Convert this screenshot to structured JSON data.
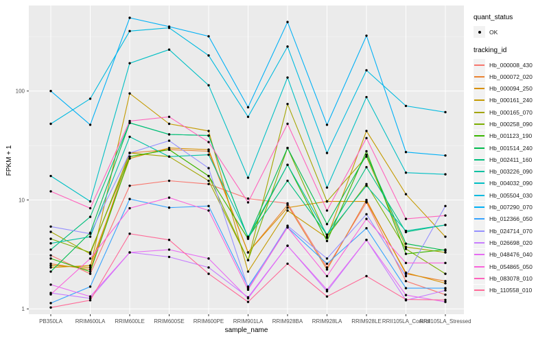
{
  "chart": {
    "x_axis_title": "sample_name",
    "y_axis_title": "FPKM + 1"
  },
  "legend": {
    "quant_title": "quant_status",
    "quant_items": [
      {
        "label": "OK"
      }
    ],
    "tracking_title": "tracking_id"
  },
  "chart_data": {
    "type": "line",
    "title": "",
    "xlabel": "sample_name",
    "ylabel": "FPKM + 1",
    "yscale": "log10",
    "yticks": [
      1,
      10,
      100
    ],
    "ytick_labels": [
      "1",
      "10",
      "100"
    ],
    "ylim": [
      0.75,
      600
    ],
    "grid": true,
    "legend_position": "right",
    "point_shape": "filled-circle",
    "point_color": "#000000",
    "panel_background": "#EBEBEB",
    "x": [
      "PB350LA",
      "RRIM600LA",
      "RRIM600LE",
      "RRIM600SE",
      "RRIM600PE",
      "RRIM901LA",
      "RRIM928BA",
      "RRIM928LA",
      "RRIM928LE",
      "RRII105LA_Control",
      "RRII105LA_Stressed"
    ],
    "series": [
      {
        "name": "Hb_000008_430",
        "color": "#F8766D",
        "values": [
          3.1,
          2.1,
          13.5,
          15,
          14,
          10.3,
          9.3,
          2.4,
          9.5,
          1.8,
          1.35
        ]
      },
      {
        "name": "Hb_000072_020",
        "color": "#EA8331",
        "values": [
          2.6,
          2.3,
          27,
          29,
          28,
          3.3,
          9.0,
          2.3,
          10,
          2.1,
          1.8
        ]
      },
      {
        "name": "Hb_000094_250",
        "color": "#D89000",
        "values": [
          2.4,
          2.5,
          24,
          30,
          29,
          3.3,
          8.5,
          9.7,
          9.7,
          2.15,
          1.72
        ]
      },
      {
        "name": "Hb_000161_240",
        "color": "#C49A00",
        "values": [
          2.5,
          2.4,
          95,
          50,
          43,
          2.2,
          8.0,
          4.5,
          43,
          11.3,
          4.6
        ]
      },
      {
        "name": "Hb_000165_070",
        "color": "#A3A500",
        "values": [
          5.1,
          3.2,
          27,
          25,
          15,
          2.8,
          76,
          9.7,
          25,
          3.7,
          3.3
        ]
      },
      {
        "name": "Hb_000258_090",
        "color": "#7CAE00",
        "values": [
          4.4,
          3.3,
          25,
          29,
          16.6,
          2.8,
          30,
          4.6,
          14,
          3.55,
          2.1
        ]
      },
      {
        "name": "Hb_001123_190",
        "color": "#39B600",
        "values": [
          2.9,
          2.2,
          25,
          29,
          16.6,
          4.4,
          21,
          4.2,
          28,
          3.2,
          3.5
        ]
      },
      {
        "name": "Hb_001514_240",
        "color": "#00BB4E",
        "values": [
          2.2,
          5.0,
          51,
          40,
          39,
          4.5,
          30,
          6.0,
          26,
          3.97,
          3.44
        ]
      },
      {
        "name": "Hb_002411_160",
        "color": "#00BF7D",
        "values": [
          3.5,
          7.0,
          51,
          40,
          39,
          4.5,
          15,
          4.8,
          20,
          5.07,
          5.9
        ]
      },
      {
        "name": "Hb_003226_090",
        "color": "#00C1A3",
        "values": [
          4.0,
          4.6,
          38,
          25,
          26,
          4.6,
          21,
          4.8,
          13.5,
          5.2,
          5.9
        ]
      },
      {
        "name": "Hb_004032_090",
        "color": "#00BFC4",
        "values": [
          16.6,
          9.7,
          180,
          240,
          113,
          16,
          133,
          13,
          88,
          17.8,
          17.2
        ]
      },
      {
        "name": "Hb_005504_030",
        "color": "#00BAE0",
        "values": [
          50,
          85,
          355,
          380,
          212,
          58,
          256,
          27,
          155,
          73,
          64
        ]
      },
      {
        "name": "Hb_007290_070",
        "color": "#00B0F6",
        "values": [
          100,
          49,
          470,
          390,
          318,
          71,
          430,
          49,
          322,
          27.5,
          25.6
        ]
      },
      {
        "name": "Hb_012366_050",
        "color": "#35A2FF",
        "values": [
          1.13,
          1.6,
          10.2,
          8.5,
          8.8,
          1.6,
          5.6,
          2.6,
          5.5,
          1.55,
          1.55
        ]
      },
      {
        "name": "Hb_024714_070",
        "color": "#9590FF",
        "values": [
          5.7,
          4.9,
          27,
          35,
          19.6,
          1.55,
          5.8,
          2.9,
          7.4,
          2.0,
          8.8
        ]
      },
      {
        "name": "Hb_026698_020",
        "color": "#C77CFF",
        "values": [
          1.4,
          1.25,
          3.3,
          3.0,
          2.4,
          1.28,
          3.8,
          1.45,
          4.3,
          1.2,
          1.48
        ]
      },
      {
        "name": "Hb_048476_040",
        "color": "#E76BF3",
        "values": [
          1.67,
          1.3,
          3.3,
          3.5,
          2.9,
          1.25,
          3.8,
          1.5,
          4.3,
          1.34,
          1.16
        ]
      },
      {
        "name": "Hb_054865_050",
        "color": "#FA62DB",
        "values": [
          1.36,
          2.9,
          8.4,
          10.5,
          8.0,
          1.5,
          5.6,
          2.0,
          6.7,
          2.64,
          2.64
        ]
      },
      {
        "name": "Hb_083078_010",
        "color": "#FF62BC",
        "values": [
          12,
          8.4,
          53,
          58,
          34,
          9.5,
          50,
          8.0,
          37,
          6.7,
          7.2
        ]
      },
      {
        "name": "Hb_110558_010",
        "color": "#FF6A98",
        "values": [
          1.03,
          1.2,
          4.9,
          4.3,
          2.1,
          1.16,
          2.6,
          1.3,
          2.0,
          1.22,
          1.21
        ]
      }
    ]
  }
}
